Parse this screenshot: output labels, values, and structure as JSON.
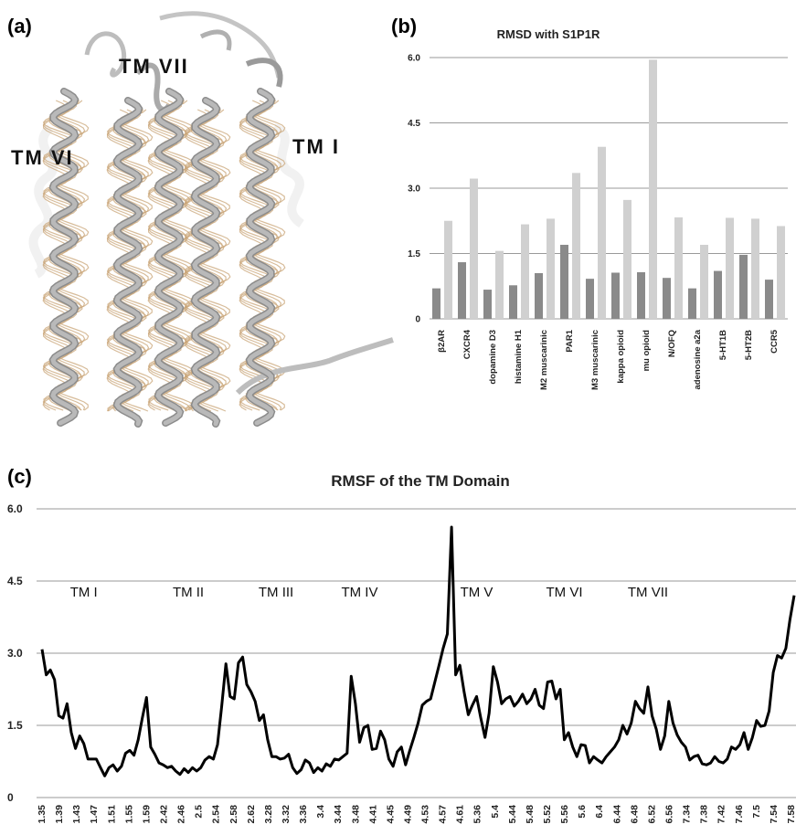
{
  "panel_labels": {
    "a": "(a)",
    "b": "(b)",
    "c": "(c)"
  },
  "structure_image": {
    "labels": [
      "TM VII",
      "TM VI",
      "TM I"
    ],
    "colors": {
      "backbone": "#b9b9b9",
      "sidechains": "#c9a678"
    }
  },
  "chart_data": [
    {
      "type": "bar",
      "title": "RMSD with S1P1R",
      "xlabel": "",
      "ylabel": "",
      "ylim": [
        0,
        6.0
      ],
      "yticks": [
        "0",
        "1.5",
        "3.0",
        "4.5",
        "6.0"
      ],
      "ytick_values": [
        0,
        1.5,
        3.0,
        4.5,
        6.0
      ],
      "grid": true,
      "categories": [
        "β2AR",
        "CXCR4",
        "dopamine D3",
        "histamine H1",
        "M2 muscarinic",
        "PAR1",
        "M3 muscarinic",
        "kappa opioid",
        "mu opioid",
        "N/OFQ",
        "adenosine a2a",
        "5-HT1B",
        "5-HT2B",
        "CCR5"
      ],
      "series": [
        {
          "values": [
            0.7,
            1.3,
            0.67,
            0.77,
            1.05,
            1.7,
            0.92,
            1.06,
            1.07,
            0.94,
            0.7,
            1.1,
            1.47,
            0.9
          ],
          "color": "#8a8a8a"
        },
        {
          "values": [
            2.25,
            3.22,
            1.56,
            2.17,
            2.3,
            3.35,
            3.95,
            2.73,
            5.95,
            2.33,
            1.7,
            2.32,
            2.3,
            2.13
          ],
          "color": "#d0d0d0"
        }
      ]
    },
    {
      "type": "line",
      "title": "RMSF of the TM Domain",
      "xlabel": "",
      "ylabel": "",
      "ylim": [
        0,
        6.0
      ],
      "yticks": [
        "0",
        "1.5",
        "3.0",
        "4.5",
        "6.0"
      ],
      "ytick_values": [
        0,
        1.5,
        3.0,
        4.5,
        6.0
      ],
      "grid": true,
      "color": "#000000",
      "xticks": [
        "1.35",
        "1.39",
        "1.43",
        "1.47",
        "1.51",
        "1.55",
        "1.59",
        "2.42",
        "2.46",
        "2.5",
        "2.54",
        "2.58",
        "2.62",
        "3.28",
        "3.32",
        "3.36",
        "3.4",
        "3.44",
        "3.48",
        "4.41",
        "4.45",
        "4.49",
        "4.53",
        "4.57",
        "4.61",
        "5.36",
        "5.4",
        "5.44",
        "5.48",
        "5.52",
        "5.56",
        "5.6",
        "6.4",
        "6.44",
        "6.48",
        "6.52",
        "6.56",
        "7.34",
        "7.38",
        "7.42",
        "7.46",
        "7.5",
        "7.54",
        "7.58"
      ],
      "region_labels": [
        {
          "text": "TM I",
          "at_point": 10
        },
        {
          "text": "TM II",
          "at_point": 35
        },
        {
          "text": "TM III",
          "at_point": 56
        },
        {
          "text": "TM IV",
          "at_point": 76
        },
        {
          "text": "TM V",
          "at_point": 104
        },
        {
          "text": "TM VI",
          "at_point": 125
        },
        {
          "text": "TM VII",
          "at_point": 145
        }
      ],
      "values": [
        3.08,
        2.55,
        2.65,
        2.45,
        1.7,
        1.65,
        1.95,
        1.35,
        1.02,
        1.28,
        1.12,
        0.8,
        0.8,
        0.8,
        0.62,
        0.45,
        0.62,
        0.68,
        0.55,
        0.65,
        0.92,
        0.98,
        0.88,
        1.2,
        1.65,
        2.08,
        1.05,
        0.9,
        0.72,
        0.68,
        0.62,
        0.65,
        0.55,
        0.48,
        0.6,
        0.52,
        0.62,
        0.55,
        0.62,
        0.78,
        0.85,
        0.8,
        1.1,
        1.9,
        2.78,
        2.1,
        2.05,
        2.8,
        2.92,
        2.35,
        2.2,
        2.0,
        1.6,
        1.72,
        1.2,
        0.85,
        0.85,
        0.8,
        0.82,
        0.9,
        0.62,
        0.5,
        0.58,
        0.78,
        0.72,
        0.52,
        0.62,
        0.55,
        0.7,
        0.65,
        0.8,
        0.78,
        0.85,
        0.92,
        2.52,
        1.95,
        1.15,
        1.45,
        1.5,
        1.0,
        1.02,
        1.38,
        1.2,
        0.8,
        0.65,
        0.95,
        1.05,
        0.68,
        0.98,
        1.25,
        1.55,
        1.92,
        2.0,
        2.05,
        2.4,
        2.75,
        3.1,
        3.4,
        5.62,
        2.55,
        2.75,
        2.2,
        1.72,
        1.92,
        2.1,
        1.65,
        1.25,
        1.75,
        2.72,
        2.4,
        1.95,
        2.05,
        2.1,
        1.9,
        2.0,
        2.15,
        1.95,
        2.05,
        2.25,
        1.92,
        1.85,
        2.4,
        2.42,
        2.05,
        2.25,
        1.2,
        1.35,
        1.05,
        0.85,
        1.1,
        1.08,
        0.72,
        0.85,
        0.78,
        0.72,
        0.85,
        0.95,
        1.05,
        1.2,
        1.5,
        1.32,
        1.55,
        2.0,
        1.85,
        1.75,
        2.3,
        1.7,
        1.42,
        1.0,
        1.28,
        2.0,
        1.55,
        1.3,
        1.15,
        1.05,
        0.78,
        0.85,
        0.88,
        0.7,
        0.68,
        0.72,
        0.85,
        0.75,
        0.72,
        0.8,
        1.05,
        1.0,
        1.1,
        1.35,
        1.0,
        1.25,
        1.6,
        1.48,
        1.5,
        1.8,
        2.6,
        2.95,
        2.9,
        3.1,
        3.7,
        4.2
      ]
    }
  ]
}
